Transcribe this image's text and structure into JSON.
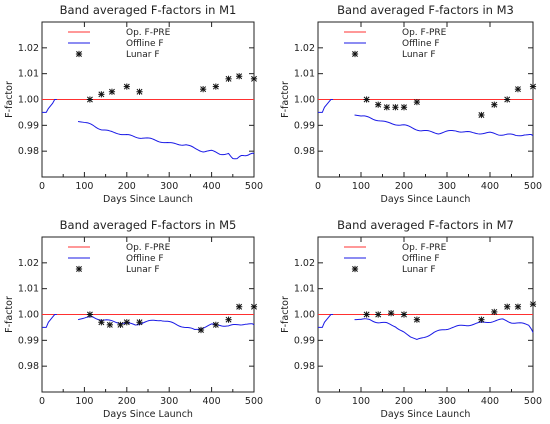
{
  "colors": {
    "opf": "#ff3030",
    "offline": "#1a1ae6",
    "lunar": "#111111",
    "axis": "#222222"
  },
  "chart_data": [
    {
      "type": "line",
      "title": "Band averaged F-factors in M1",
      "xlabel": "Days Since Launch",
      "ylabel": "F-factor",
      "xlim": [
        0,
        500
      ],
      "ylim": [
        0.97,
        1.03
      ],
      "xticks": [
        0,
        100,
        200,
        300,
        400,
        500
      ],
      "xtick_labels": [
        "0",
        "100",
        "200",
        "300",
        "400",
        "500"
      ],
      "yticks": [
        0.98,
        0.99,
        1.0,
        1.01,
        1.02
      ],
      "ytick_labels": [
        "0.98",
        "0.99",
        "1.00",
        "1.01",
        "1.02"
      ],
      "legend": [
        "Op. F-PRE",
        "Offline F",
        "Lunar F"
      ],
      "legend_position": "top-left",
      "series": [
        {
          "name": "Op. F-PRE",
          "style": "line",
          "x": [
            0,
            500
          ],
          "y": [
            1.0,
            1.0
          ]
        },
        {
          "name": "Offline F",
          "style": "line",
          "x": [
            0,
            10,
            15,
            25,
            30,
            35,
            85,
            100,
            120,
            140,
            160,
            180,
            200,
            220,
            240,
            260,
            280,
            300,
            320,
            340,
            360,
            380,
            400,
            420,
            440,
            450,
            460,
            470,
            480,
            490,
            500
          ],
          "y": [
            0.995,
            0.995,
            0.9965,
            0.9985,
            1.0,
            1.0,
            0.9915,
            0.991,
            0.99,
            0.9885,
            0.9875,
            0.987,
            0.9862,
            0.9855,
            0.9852,
            0.9845,
            0.9838,
            0.983,
            0.9828,
            0.9825,
            0.981,
            0.98,
            0.98,
            0.979,
            0.979,
            0.9775,
            0.977,
            0.978,
            0.9785,
            0.979,
            0.979
          ]
        },
        {
          "name": "Lunar F",
          "style": "marker",
          "x": [
            113,
            140,
            165,
            200,
            230,
            380,
            410,
            440,
            465,
            500
          ],
          "y": [
            1.0,
            1.002,
            1.003,
            1.005,
            1.003,
            1.004,
            1.005,
            1.008,
            1.009,
            1.008
          ]
        }
      ]
    },
    {
      "type": "line",
      "title": "Band averaged F-factors in M3",
      "xlabel": "Days Since Launch",
      "ylabel": "F-factor",
      "xlim": [
        0,
        500
      ],
      "ylim": [
        0.97,
        1.03
      ],
      "xticks": [
        0,
        100,
        200,
        300,
        400,
        500
      ],
      "xtick_labels": [
        "0",
        "100",
        "200",
        "300",
        "400",
        "500"
      ],
      "yticks": [
        0.98,
        0.99,
        1.0,
        1.01,
        1.02
      ],
      "ytick_labels": [
        "0.98",
        "0.99",
        "1.00",
        "1.01",
        "1.02"
      ],
      "legend": [
        "Op. F-PRE",
        "Offline F",
        "Lunar F"
      ],
      "legend_position": "top-left",
      "series": [
        {
          "name": "Op. F-PRE",
          "style": "line",
          "x": [
            0,
            500
          ],
          "y": [
            1.0,
            1.0
          ]
        },
        {
          "name": "Offline F",
          "style": "line",
          "x": [
            0,
            10,
            15,
            25,
            30,
            35,
            85,
            100,
            120,
            140,
            160,
            180,
            200,
            220,
            240,
            260,
            280,
            300,
            320,
            340,
            360,
            380,
            400,
            420,
            440,
            460,
            480,
            500
          ],
          "y": [
            0.995,
            0.995,
            0.997,
            0.999,
            1.0,
            1.0,
            0.994,
            0.9935,
            0.993,
            0.992,
            0.991,
            0.9905,
            0.99,
            0.989,
            0.988,
            0.9875,
            0.987,
            0.9875,
            0.988,
            0.9875,
            0.987,
            0.987,
            0.987,
            0.9865,
            0.9865,
            0.986,
            0.9865,
            0.986
          ]
        },
        {
          "name": "Lunar F",
          "style": "marker",
          "x": [
            113,
            140,
            160,
            180,
            200,
            230,
            380,
            410,
            440,
            465,
            500
          ],
          "y": [
            1.0,
            0.998,
            0.997,
            0.997,
            0.997,
            0.999,
            0.994,
            0.998,
            1.0,
            1.004,
            1.005
          ]
        }
      ]
    },
    {
      "type": "line",
      "title": "Band averaged F-factors in M5",
      "xlabel": "Days Since Launch",
      "ylabel": "F-factor",
      "xlim": [
        0,
        500
      ],
      "ylim": [
        0.97,
        1.03
      ],
      "xticks": [
        0,
        100,
        200,
        300,
        400,
        500
      ],
      "xtick_labels": [
        "0",
        "100",
        "200",
        "300",
        "400",
        "500"
      ],
      "yticks": [
        0.98,
        0.99,
        1.0,
        1.01,
        1.02
      ],
      "ytick_labels": [
        "0.98",
        "0.99",
        "1.00",
        "1.01",
        "1.02"
      ],
      "legend": [
        "Op. F-PRE",
        "Offline F",
        "Lunar F"
      ],
      "legend_position": "top-left",
      "series": [
        {
          "name": "Op. F-PRE",
          "style": "line",
          "x": [
            0,
            500
          ],
          "y": [
            1.0,
            1.0
          ]
        },
        {
          "name": "Offline F",
          "style": "line",
          "x": [
            0,
            10,
            15,
            25,
            30,
            35,
            85,
            100,
            120,
            140,
            160,
            180,
            200,
            220,
            240,
            260,
            280,
            300,
            320,
            340,
            360,
            380,
            400,
            420,
            440,
            460,
            480,
            500
          ],
          "y": [
            0.995,
            0.995,
            0.997,
            0.999,
            1.0,
            1.0,
            0.998,
            0.9985,
            0.999,
            0.998,
            0.9975,
            0.997,
            0.9965,
            0.996,
            0.997,
            0.9975,
            0.998,
            0.997,
            0.996,
            0.995,
            0.994,
            0.995,
            0.996,
            0.996,
            0.9955,
            0.996,
            0.9965,
            0.996
          ]
        },
        {
          "name": "Lunar F",
          "style": "marker",
          "x": [
            113,
            140,
            160,
            185,
            200,
            230,
            375,
            410,
            440,
            465,
            500
          ],
          "y": [
            1.0,
            0.997,
            0.996,
            0.996,
            0.997,
            0.997,
            0.994,
            0.996,
            0.998,
            1.003,
            1.003
          ]
        }
      ]
    },
    {
      "type": "line",
      "title": "Band averaged F-factors in M7",
      "xlabel": "Days Since Launch",
      "ylabel": "F-factor",
      "xlim": [
        0,
        500
      ],
      "ylim": [
        0.97,
        1.03
      ],
      "xticks": [
        0,
        100,
        200,
        300,
        400,
        500
      ],
      "xtick_labels": [
        "0",
        "100",
        "200",
        "300",
        "400",
        "500"
      ],
      "yticks": [
        0.98,
        0.99,
        1.0,
        1.01,
        1.02
      ],
      "ytick_labels": [
        "0.98",
        "0.99",
        "1.00",
        "1.01",
        "1.02"
      ],
      "legend": [
        "Op. F-PRE",
        "Offline F",
        "Lunar F"
      ],
      "legend_position": "top-left",
      "series": [
        {
          "name": "Op. F-PRE",
          "style": "line",
          "x": [
            0,
            500
          ],
          "y": [
            1.0,
            1.0
          ]
        },
        {
          "name": "Offline F",
          "style": "line",
          "x": [
            0,
            10,
            15,
            25,
            30,
            35,
            85,
            100,
            120,
            140,
            160,
            180,
            200,
            215,
            230,
            250,
            270,
            290,
            310,
            330,
            350,
            370,
            390,
            410,
            430,
            450,
            470,
            490,
            500
          ],
          "y": [
            0.995,
            0.995,
            0.997,
            0.999,
            1.0,
            1.0,
            0.998,
            0.998,
            0.998,
            0.997,
            0.9965,
            0.9955,
            0.993,
            0.991,
            0.99,
            0.9915,
            0.993,
            0.994,
            0.995,
            0.9955,
            0.996,
            0.9965,
            0.997,
            0.9975,
            0.998,
            0.997,
            0.9965,
            0.996,
            0.993
          ]
        },
        {
          "name": "Lunar F",
          "style": "marker",
          "x": [
            113,
            140,
            170,
            200,
            230,
            380,
            410,
            440,
            465,
            500
          ],
          "y": [
            1.0,
            1.0,
            1.0005,
            1.0,
            0.998,
            0.998,
            1.001,
            1.003,
            1.003,
            1.004
          ]
        }
      ]
    }
  ]
}
